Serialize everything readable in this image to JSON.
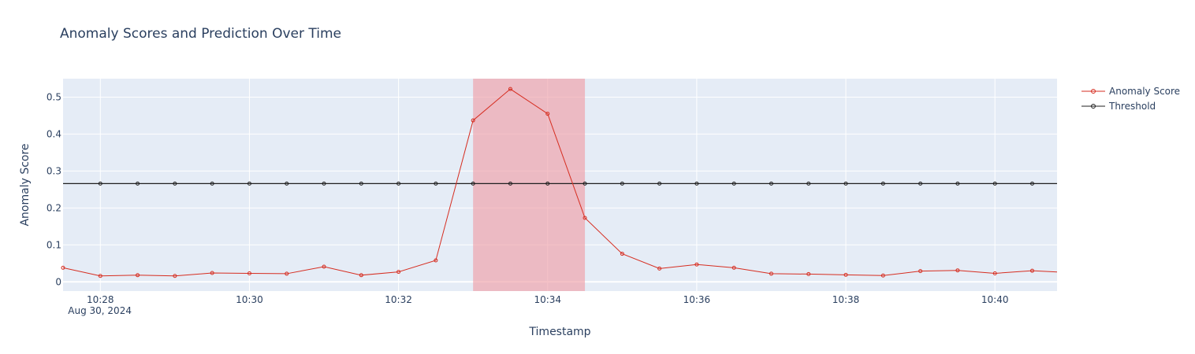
{
  "chart_data": {
    "type": "line",
    "title": "Anomaly Scores and Prediction Over Time",
    "xlabel": "Timestamp",
    "ylabel": "Anomaly Score",
    "date_label": "Aug 30, 2024",
    "x": [
      "10:27:30",
      "10:28:00",
      "10:28:30",
      "10:29:00",
      "10:29:30",
      "10:30:00",
      "10:30:30",
      "10:31:00",
      "10:31:30",
      "10:32:00",
      "10:32:30",
      "10:33:00",
      "10:33:30",
      "10:34:00",
      "10:34:30",
      "10:35:00",
      "10:35:30",
      "10:36:00",
      "10:36:30",
      "10:37:00",
      "10:37:30",
      "10:38:00",
      "10:38:30",
      "10:39:00",
      "10:39:30",
      "10:40:00",
      "10:40:30",
      "10:41:00"
    ],
    "x_ticks": [
      "10:28",
      "10:30",
      "10:32",
      "10:34",
      "10:36",
      "10:38",
      "10:40"
    ],
    "xlim": [
      "10:27:30",
      "10:40:50"
    ],
    "ylim": [
      -0.025,
      0.55
    ],
    "y_ticks": [
      0,
      0.1,
      0.2,
      0.3,
      0.4,
      0.5
    ],
    "y_tick_labels": [
      "0",
      "0.1",
      "0.2",
      "0.3",
      "0.4",
      "0.5"
    ],
    "series": [
      {
        "name": "Anomaly Score",
        "color": "#d62d20",
        "values": [
          0.038,
          0.016,
          0.018,
          0.016,
          0.024,
          0.023,
          0.022,
          0.041,
          0.018,
          0.027,
          0.058,
          0.437,
          0.522,
          0.455,
          0.173,
          0.076,
          0.036,
          0.047,
          0.038,
          0.022,
          0.021,
          0.019,
          0.017,
          0.029,
          0.031,
          0.023,
          0.03,
          0.025
        ]
      },
      {
        "name": "Threshold",
        "color": "#1f1f1f",
        "values": [
          0.266,
          0.266,
          0.266,
          0.266,
          0.266,
          0.266,
          0.266,
          0.266,
          0.266,
          0.266,
          0.266,
          0.266,
          0.266,
          0.266,
          0.266,
          0.266,
          0.266,
          0.266,
          0.266,
          0.266,
          0.266,
          0.266,
          0.266,
          0.266,
          0.266,
          0.266,
          0.266,
          0.266
        ],
        "marker_from": "10:28:00",
        "marker_to": "10:40:30"
      }
    ],
    "highlight_region": {
      "start": "10:33:00",
      "end": "10:34:30",
      "color": "#f0a0a8"
    },
    "legend_position": "top-right",
    "grid": true,
    "background": "#e5ecf6"
  }
}
